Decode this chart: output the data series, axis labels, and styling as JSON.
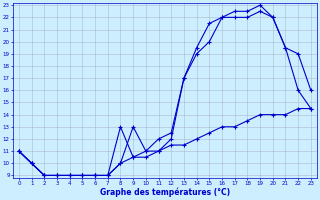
{
  "title": "Graphe des températures (°C)",
  "bg_color": "#cceeff",
  "grid_color": "#aabbcc",
  "line_color": "#0000cc",
  "ylim": [
    9,
    23
  ],
  "xlim": [
    -0.5,
    23.5
  ],
  "yticks": [
    9,
    10,
    11,
    12,
    13,
    14,
    15,
    16,
    17,
    18,
    19,
    20,
    21,
    22,
    23
  ],
  "xticks": [
    0,
    1,
    2,
    3,
    4,
    5,
    6,
    7,
    8,
    9,
    10,
    11,
    12,
    13,
    14,
    15,
    16,
    17,
    18,
    19,
    20,
    21,
    22,
    23
  ],
  "line1_x": [
    0,
    1,
    2,
    3,
    4,
    5,
    6,
    7,
    8,
    9,
    10,
    11,
    12,
    13,
    14,
    15,
    16,
    17,
    18,
    19,
    20,
    21,
    22,
    23
  ],
  "line1_y": [
    11,
    10,
    9,
    9,
    9,
    9,
    9,
    9,
    10,
    13,
    11,
    11,
    12,
    17,
    19,
    20,
    22,
    22,
    22,
    22.5,
    22,
    19.5,
    16,
    14.5
  ],
  "line2_x": [
    0,
    1,
    2,
    3,
    4,
    5,
    6,
    7,
    8,
    9,
    10,
    11,
    12,
    13,
    14,
    15,
    16,
    17,
    18,
    19,
    20,
    21,
    22,
    23
  ],
  "line2_y": [
    11,
    10,
    9,
    9,
    9,
    9,
    9,
    9,
    13,
    10.5,
    11,
    12,
    12.5,
    17,
    19.5,
    21.5,
    22,
    22.5,
    22.5,
    23,
    22,
    19.5,
    19,
    16
  ],
  "line3_x": [
    0,
    1,
    2,
    3,
    4,
    5,
    6,
    7,
    8,
    9,
    10,
    11,
    12,
    13,
    14,
    15,
    16,
    17,
    18,
    19,
    20,
    21,
    22,
    23
  ],
  "line3_y": [
    11,
    10,
    9,
    9,
    9,
    9,
    9,
    9,
    10,
    10.5,
    10.5,
    11,
    11.5,
    11.5,
    12,
    12.5,
    13,
    13,
    13.5,
    14,
    14,
    14,
    14.5,
    14.5
  ]
}
